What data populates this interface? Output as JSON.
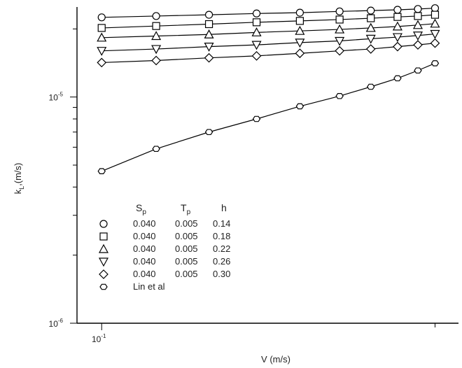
{
  "chart_data": {
    "type": "scatter",
    "xlabel": "V (m/s)",
    "ylabel": "k_L (m/s)",
    "x_scale": "log",
    "y_scale": "log",
    "xlim": [
      0.095,
      0.21
    ],
    "ylim": [
      1e-06,
      2.5e-05
    ],
    "x_tick_labels": [
      {
        "value": 0.1,
        "base": "10",
        "exp": "-1"
      }
    ],
    "y_tick_labels": [
      {
        "value": 1e-05,
        "base": "10",
        "exp": "-5"
      },
      {
        "value": 1e-06,
        "base": "10",
        "exp": "-6"
      }
    ],
    "x": [
      0.1,
      0.112,
      0.125,
      0.138,
      0.151,
      0.164,
      0.175,
      0.185,
      0.193,
      0.2
    ],
    "series": [
      {
        "marker": "circle",
        "values": [
          2.25e-05,
          2.28e-05,
          2.31e-05,
          2.34e-05,
          2.36e-05,
          2.39e-05,
          2.41e-05,
          2.43e-05,
          2.45e-05,
          2.47e-05
        ]
      },
      {
        "marker": "square",
        "values": [
          2.02e-05,
          2.06e-05,
          2.1e-05,
          2.14e-05,
          2.17e-05,
          2.2e-05,
          2.23e-05,
          2.26e-05,
          2.28e-05,
          2.31e-05
        ]
      },
      {
        "marker": "triangle-up",
        "values": [
          1.83e-05,
          1.86e-05,
          1.89e-05,
          1.93e-05,
          1.96e-05,
          1.99e-05,
          2.02e-05,
          2.05e-05,
          2.08e-05,
          2.11e-05
        ]
      },
      {
        "marker": "triangle-down",
        "values": [
          1.6e-05,
          1.63e-05,
          1.67e-05,
          1.7e-05,
          1.74e-05,
          1.77e-05,
          1.81e-05,
          1.84e-05,
          1.87e-05,
          1.9e-05
        ]
      },
      {
        "marker": "diamond",
        "values": [
          1.42e-05,
          1.45e-05,
          1.49e-05,
          1.52e-05,
          1.56e-05,
          1.6e-05,
          1.63e-05,
          1.67e-05,
          1.7e-05,
          1.73e-05
        ]
      },
      {
        "marker": "hexagon",
        "values": [
          4.7e-06,
          5.9e-06,
          7e-06,
          8e-06,
          9.1e-06,
          1.01e-05,
          1.11e-05,
          1.21e-05,
          1.31e-05,
          1.41e-05
        ]
      }
    ],
    "legend": {
      "placement": "bottom-left inside",
      "headers": {
        "sp": "S",
        "sp_sub": "p",
        "tp": "T",
        "tp_sub": "p",
        "h": "h"
      },
      "rows": [
        {
          "marker": "circle",
          "sp": "0.040",
          "tp": "0.005",
          "h": "0.14"
        },
        {
          "marker": "square",
          "sp": "0.040",
          "tp": "0.005",
          "h": "0.18"
        },
        {
          "marker": "triangle-up",
          "sp": "0.040",
          "tp": "0.005",
          "h": "0.22"
        },
        {
          "marker": "triangle-down",
          "sp": "0.040",
          "tp": "0.005",
          "h": "0.26"
        },
        {
          "marker": "diamond",
          "sp": "0.040",
          "tp": "0.005",
          "h": "0.30"
        },
        {
          "marker": "hexagon",
          "text": "Lin et al"
        }
      ]
    }
  }
}
